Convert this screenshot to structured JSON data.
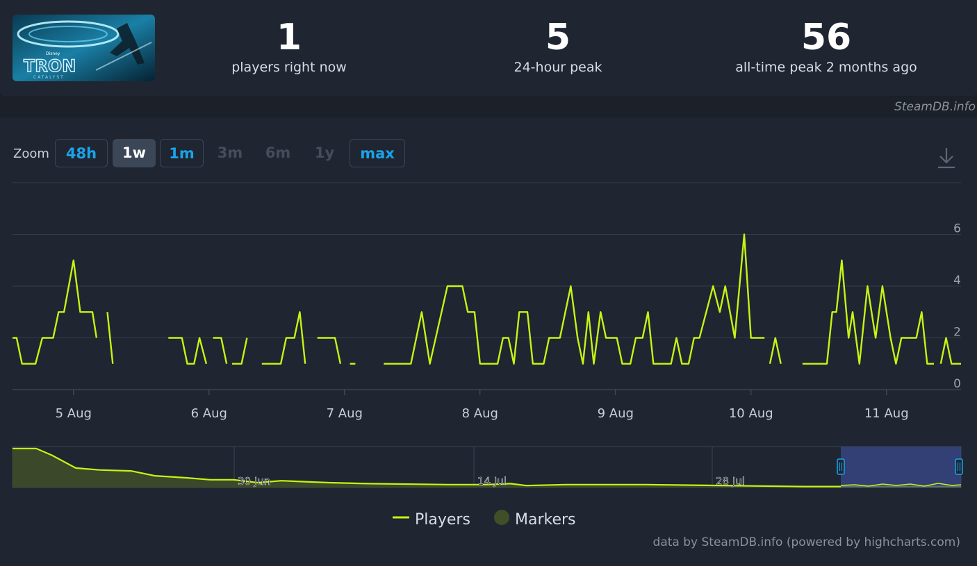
{
  "stats": [
    {
      "value": "1",
      "label": "players right now"
    },
    {
      "value": "5",
      "label": "24-hour peak"
    },
    {
      "value": "56",
      "label": "all-time peak 2 months ago"
    }
  ],
  "game_image": {
    "logo_small": "Disney",
    "logo_main": "TRON",
    "logo_sub": "CATALYST"
  },
  "source_top": "SteamDB.info",
  "zoom": {
    "label": "Zoom",
    "buttons": [
      {
        "label": "48h",
        "state": "enabled"
      },
      {
        "label": "1w",
        "state": "selected"
      },
      {
        "label": "1m",
        "state": "enabled"
      },
      {
        "label": "3m",
        "state": "disabled"
      },
      {
        "label": "6m",
        "state": "disabled"
      },
      {
        "label": "1y",
        "state": "disabled"
      },
      {
        "label": "max",
        "state": "enabled"
      }
    ]
  },
  "download_icon": "download-icon",
  "credit": "data by SteamDB.info (powered by highcharts.com)",
  "colors": {
    "line": "#c6f414",
    "accent": "#1aa3ea",
    "markers": "#414f28"
  },
  "chart_data": {
    "type": "line",
    "x_unit": "days (Aug 2024)",
    "xlim": [
      4.55,
      11.55
    ],
    "ylim": [
      0,
      8
    ],
    "yticks": [
      0,
      2,
      4,
      6
    ],
    "xticks": [
      {
        "label": "5 Aug",
        "x": 5
      },
      {
        "label": "6 Aug",
        "x": 6
      },
      {
        "label": "7 Aug",
        "x": 7
      },
      {
        "label": "8 Aug",
        "x": 8
      },
      {
        "label": "9 Aug",
        "x": 9
      },
      {
        "label": "10 Aug",
        "x": 10
      },
      {
        "label": "11 Aug",
        "x": 11
      }
    ],
    "grid": true,
    "series": [
      {
        "name": "Players",
        "segments": [
          [
            [
              4.55,
              2
            ],
            [
              4.58,
              2
            ],
            [
              4.62,
              1
            ],
            [
              4.72,
              1
            ],
            [
              4.77,
              2
            ],
            [
              4.85,
              2
            ],
            [
              4.89,
              3
            ],
            [
              4.93,
              3
            ],
            [
              5.0,
              5
            ],
            [
              5.05,
              3
            ],
            [
              5.14,
              3
            ],
            [
              5.17,
              2
            ]
          ],
          [
            [
              5.25,
              3
            ],
            [
              5.29,
              1
            ]
          ],
          [
            [
              5.7,
              2
            ],
            [
              5.8,
              2
            ],
            [
              5.84,
              1
            ],
            [
              5.89,
              1
            ],
            [
              5.93,
              2
            ],
            [
              5.98,
              1
            ]
          ],
          [
            [
              6.03,
              2
            ],
            [
              6.09,
              2
            ],
            [
              6.13,
              1
            ]
          ],
          [
            [
              6.17,
              1
            ],
            [
              6.24,
              1
            ],
            [
              6.28,
              2
            ]
          ],
          [
            [
              6.39,
              1
            ],
            [
              6.53,
              1
            ],
            [
              6.57,
              2
            ],
            [
              6.63,
              2
            ],
            [
              6.67,
              3
            ],
            [
              6.71,
              1
            ]
          ],
          [
            [
              6.8,
              2
            ],
            [
              6.93,
              2
            ],
            [
              6.97,
              1
            ]
          ],
          [
            [
              7.04,
              1
            ],
            [
              7.08,
              1
            ]
          ],
          [
            [
              7.29,
              1
            ],
            [
              7.49,
              1
            ],
            [
              7.57,
              3
            ],
            [
              7.63,
              1
            ],
            [
              7.76,
              4
            ],
            [
              7.87,
              4
            ],
            [
              7.91,
              3
            ],
            [
              7.96,
              3
            ],
            [
              8.0,
              1
            ],
            [
              8.13,
              1
            ],
            [
              8.17,
              2
            ],
            [
              8.21,
              2
            ],
            [
              8.25,
              1
            ],
            [
              8.29,
              3
            ],
            [
              8.35,
              3
            ],
            [
              8.39,
              1
            ],
            [
              8.47,
              1
            ],
            [
              8.51,
              2
            ],
            [
              8.59,
              2
            ],
            [
              8.67,
              4
            ],
            [
              8.72,
              2
            ],
            [
              8.76,
              1
            ],
            [
              8.8,
              3
            ],
            [
              8.84,
              1
            ],
            [
              8.89,
              3
            ],
            [
              8.93,
              2
            ],
            [
              9.01,
              2
            ],
            [
              9.05,
              1
            ],
            [
              9.11,
              1
            ],
            [
              9.15,
              2
            ],
            [
              9.2,
              2
            ],
            [
              9.24,
              3
            ],
            [
              9.28,
              1
            ],
            [
              9.41,
              1
            ],
            [
              9.45,
              2
            ],
            [
              9.49,
              1
            ],
            [
              9.54,
              1
            ],
            [
              9.58,
              2
            ],
            [
              9.62,
              2
            ],
            [
              9.72,
              4
            ],
            [
              9.77,
              3
            ],
            [
              9.81,
              4
            ],
            [
              9.88,
              2
            ],
            [
              9.95,
              6
            ],
            [
              10.0,
              2
            ],
            [
              10.1,
              2
            ]
          ],
          [
            [
              10.14,
              1
            ],
            [
              10.18,
              2
            ],
            [
              10.22,
              1
            ]
          ],
          [
            [
              10.38,
              1
            ],
            [
              10.56,
              1
            ],
            [
              10.6,
              3
            ],
            [
              10.63,
              3
            ],
            [
              10.67,
              5
            ],
            [
              10.72,
              2
            ],
            [
              10.75,
              3
            ],
            [
              10.8,
              1
            ],
            [
              10.86,
              4
            ],
            [
              10.92,
              2
            ],
            [
              10.97,
              4
            ],
            [
              11.03,
              2
            ],
            [
              11.07,
              1
            ],
            [
              11.11,
              2
            ],
            [
              11.22,
              2
            ],
            [
              11.26,
              3
            ],
            [
              11.3,
              1
            ],
            [
              11.35,
              1
            ]
          ],
          [
            [
              11.4,
              1
            ],
            [
              11.44,
              2
            ],
            [
              11.48,
              1
            ],
            [
              11.55,
              1
            ]
          ]
        ]
      }
    ],
    "legend": {
      "position": "bottom-center",
      "items": [
        "Players",
        "Markers"
      ]
    },
    "navigator": {
      "labels": [
        "30 Jun",
        "14 Jul",
        "28 Jul"
      ],
      "selected_range": "4 Aug - 11 Aug",
      "series": [
        [
          0,
          40
        ],
        [
          3,
          40
        ],
        [
          5,
          33
        ],
        [
          8,
          20
        ],
        [
          11,
          18
        ],
        [
          15,
          17
        ],
        [
          18,
          12
        ],
        [
          22,
          10
        ],
        [
          25,
          8
        ],
        [
          28,
          8
        ],
        [
          31,
          5
        ],
        [
          34,
          7
        ],
        [
          37,
          6
        ],
        [
          40,
          5
        ],
        [
          45,
          4
        ],
        [
          55,
          3
        ],
        [
          60,
          3
        ],
        [
          63,
          4
        ],
        [
          65,
          2
        ],
        [
          70,
          3
        ],
        [
          80,
          3
        ],
        [
          90,
          2
        ],
        [
          100,
          1
        ],
        [
          110,
          1
        ],
        [
          120,
          1
        ]
      ]
    }
  }
}
